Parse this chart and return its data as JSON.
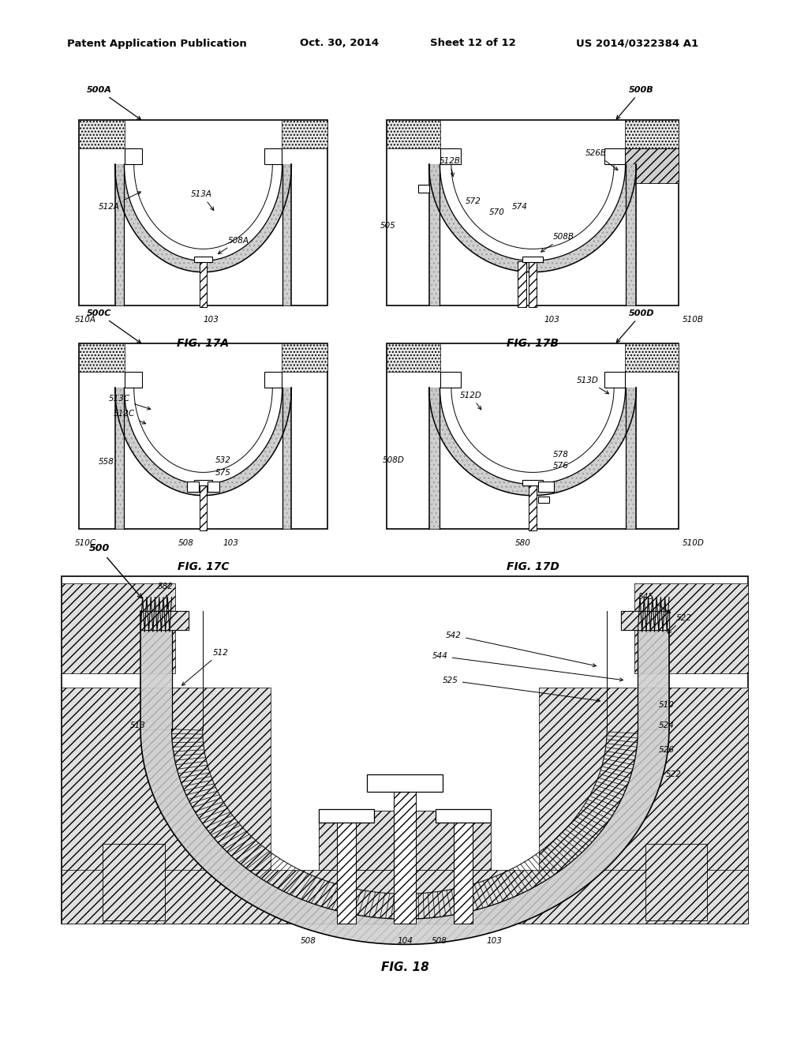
{
  "bg_color": "#ffffff",
  "header_text": "Patent Application Publication",
  "header_date": "Oct. 30, 2014",
  "header_sheet": "Sheet 12 of 12",
  "header_patent": "US 2014/0322384 A1"
}
